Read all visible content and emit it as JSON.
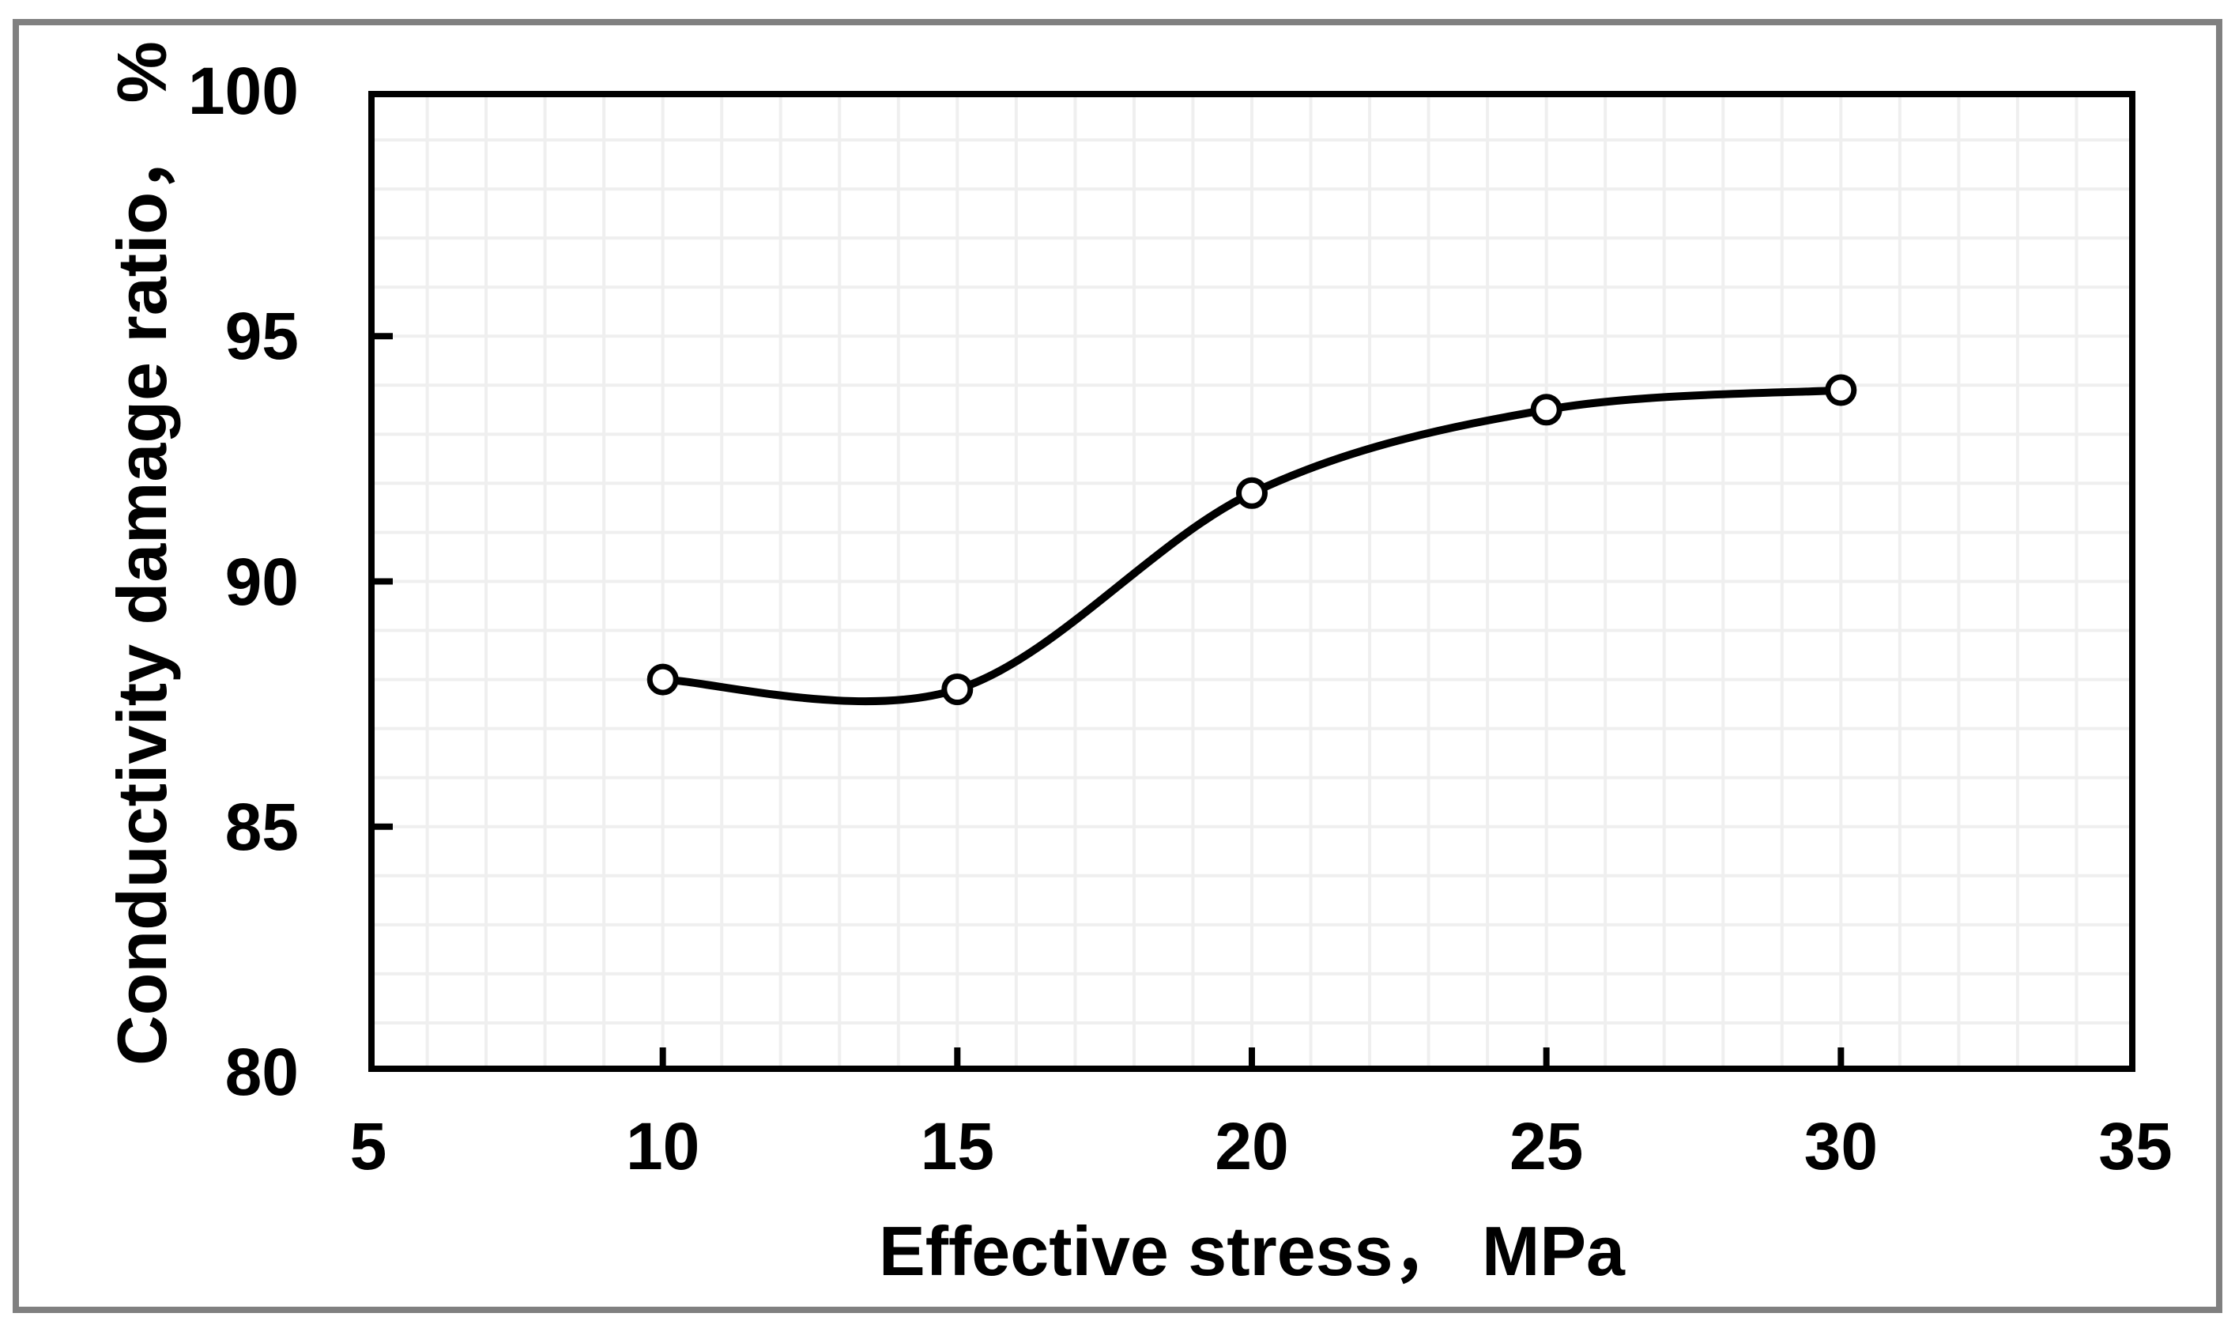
{
  "figure": {
    "background_color": "#ffffff",
    "border_color": "#808080",
    "text_color": "#000000"
  },
  "chart_data": {
    "type": "line",
    "title": "",
    "xlabel": "Effective stress， MPa",
    "ylabel": "Conductivity damage ratio， %",
    "x": [
      10,
      15,
      20,
      25,
      30
    ],
    "series": [
      {
        "name": "Conductivity damage ratio",
        "values": [
          88.0,
          87.8,
          91.8,
          93.5,
          93.9
        ]
      }
    ],
    "xlim": [
      5,
      35
    ],
    "ylim": [
      80,
      100
    ],
    "x_ticks": [
      5,
      10,
      15,
      20,
      25,
      30,
      35
    ],
    "y_ticks": [
      80,
      85,
      90,
      95,
      100
    ],
    "minor_grid_step_x": 1,
    "minor_grid_step_y": 1,
    "grid": "minor",
    "grid_color": "#efefef",
    "frame_color": "#000000",
    "line_color": "#000000",
    "marker": "open-circle",
    "marker_fill": "#ffffff",
    "smooth": true,
    "legend": "none"
  }
}
